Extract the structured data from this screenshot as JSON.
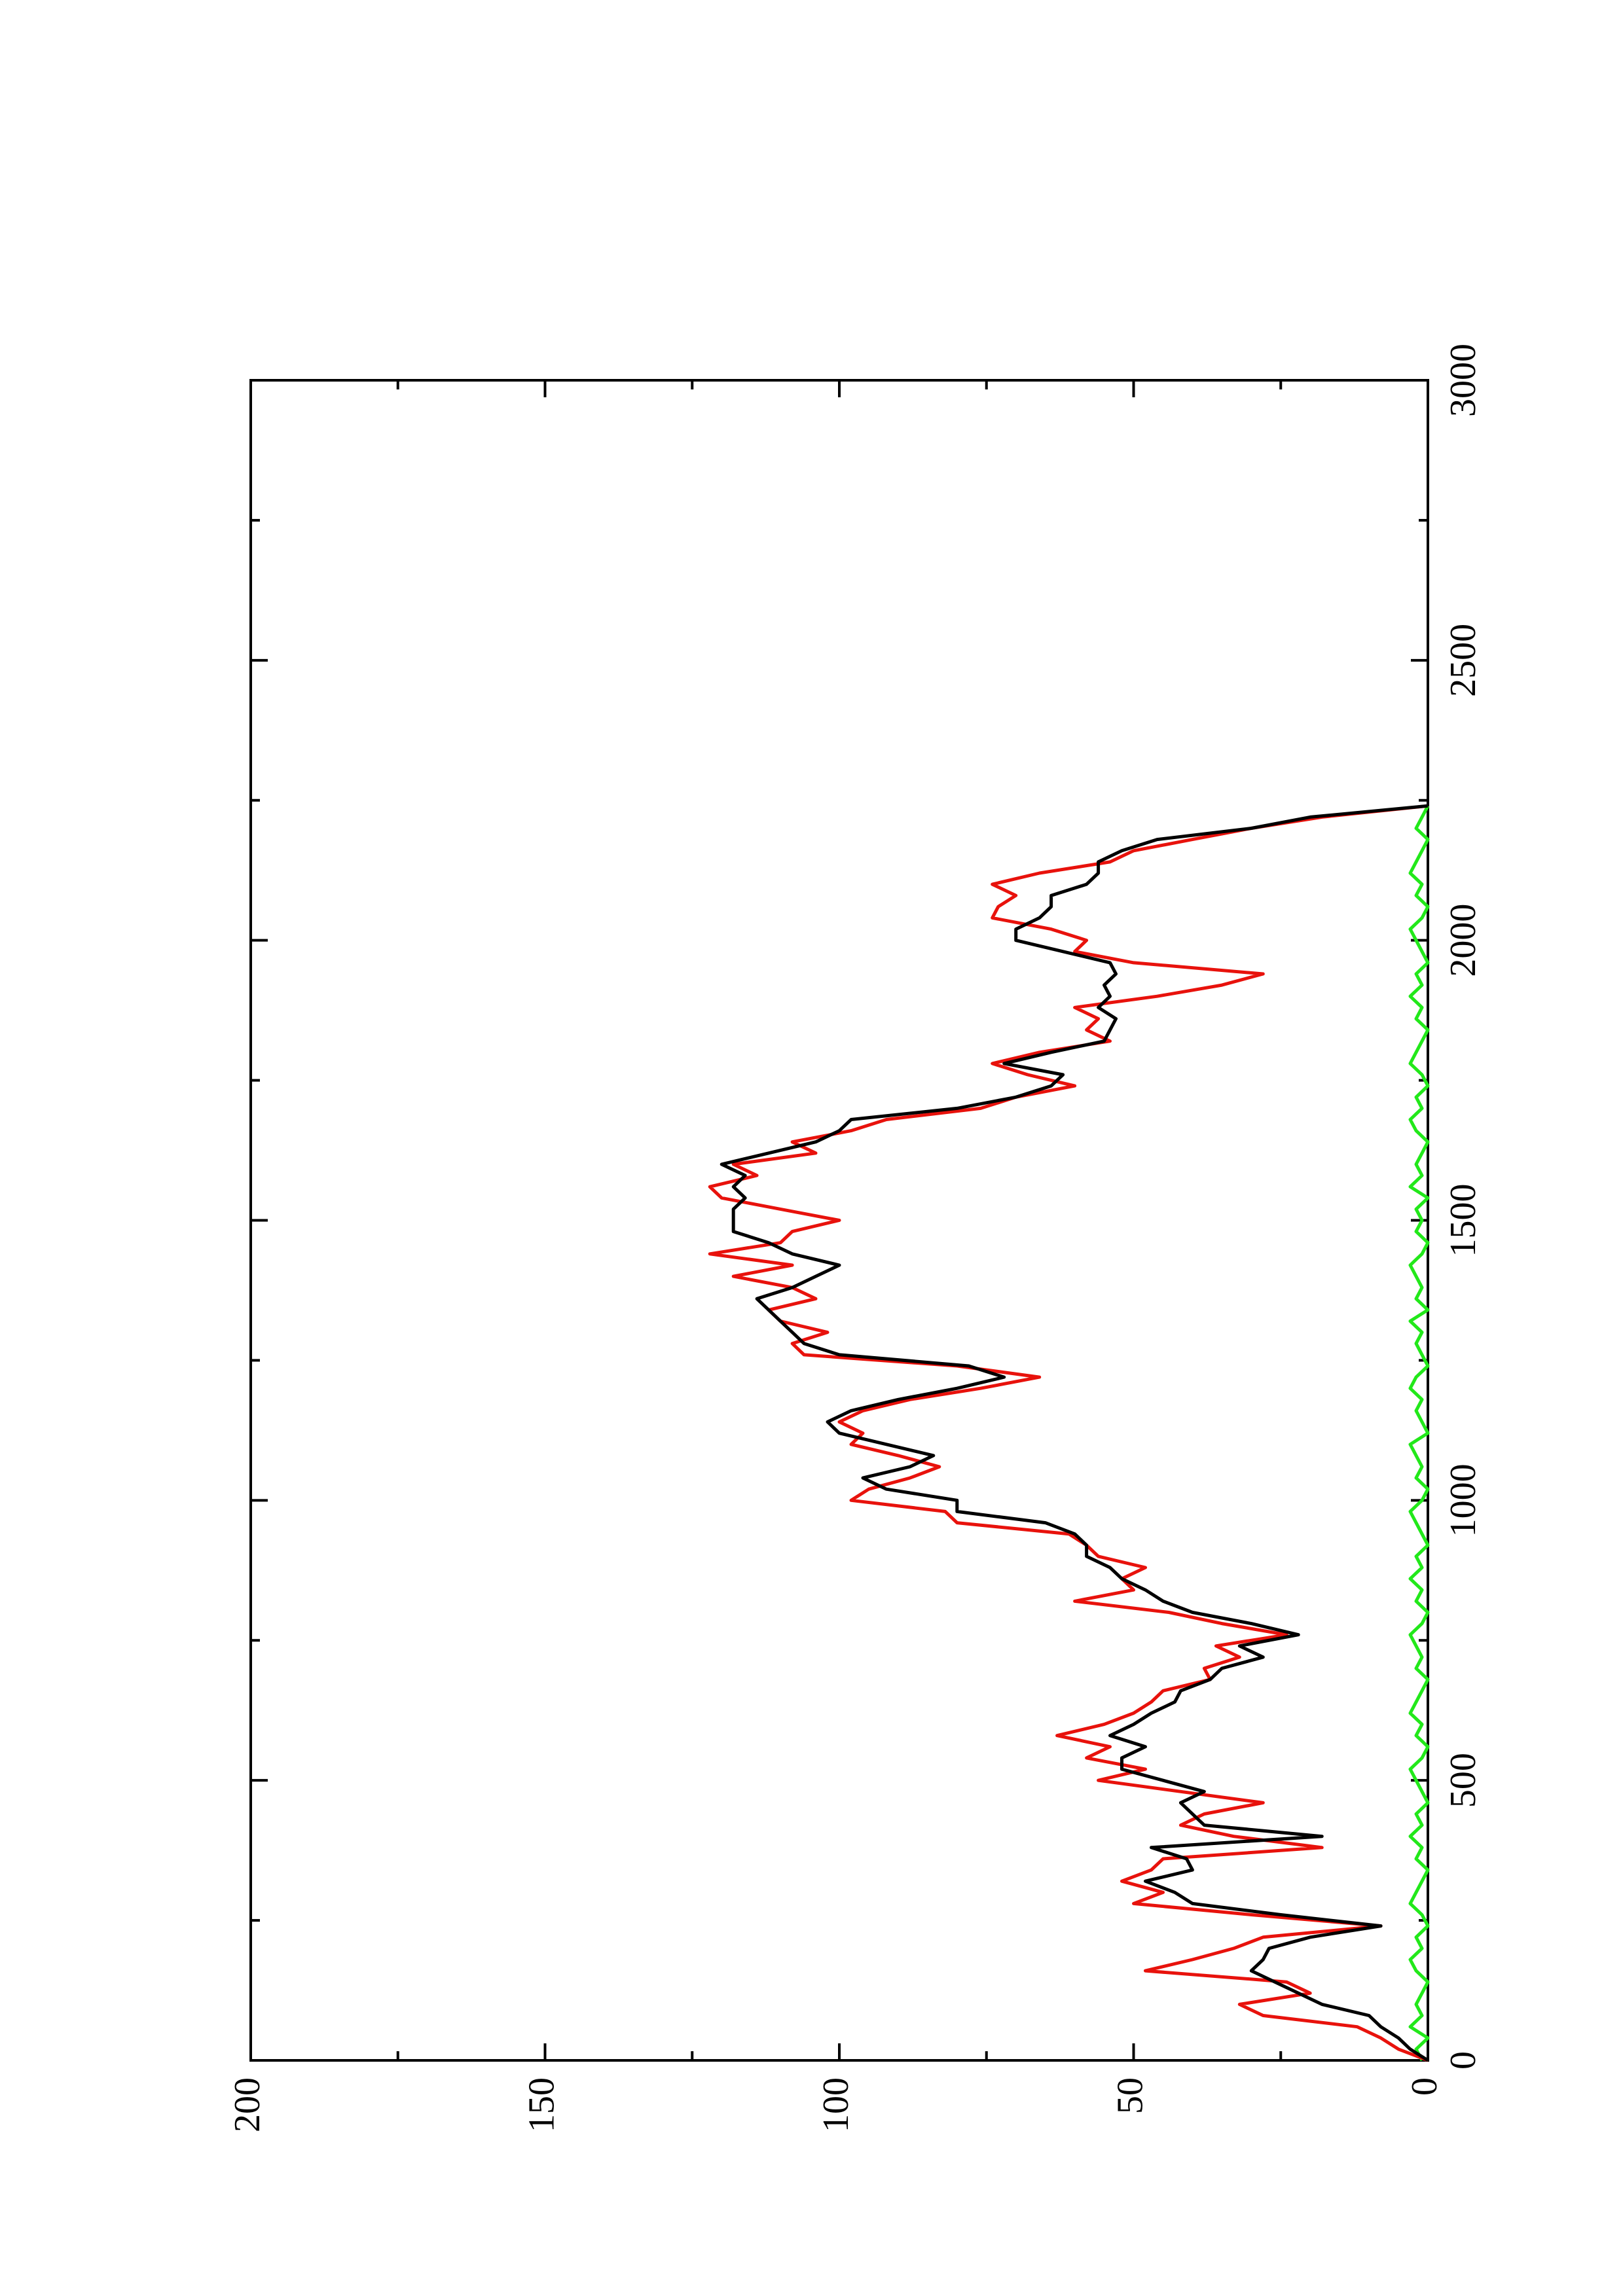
{
  "chart_data": {
    "type": "line",
    "x": [
      0,
      20,
      40,
      60,
      80,
      100,
      120,
      140,
      160,
      180,
      200,
      220,
      240,
      260,
      280,
      300,
      320,
      340,
      360,
      380,
      400,
      420,
      440,
      460,
      480,
      500,
      520,
      540,
      560,
      580,
      600,
      620,
      640,
      660,
      680,
      700,
      720,
      740,
      760,
      780,
      800,
      820,
      840,
      860,
      880,
      900,
      920,
      940,
      960,
      980,
      1000,
      1020,
      1040,
      1060,
      1080,
      1100,
      1120,
      1140,
      1160,
      1180,
      1200,
      1220,
      1240,
      1260,
      1280,
      1300,
      1320,
      1340,
      1360,
      1380,
      1400,
      1420,
      1440,
      1460,
      1480,
      1500,
      1520,
      1540,
      1560,
      1580,
      1600,
      1620,
      1640,
      1660,
      1680,
      1700,
      1720,
      1740,
      1760,
      1780,
      1800,
      1820,
      1840,
      1860,
      1880,
      1900,
      1920,
      1940,
      1960,
      1980,
      2000,
      2020,
      2040,
      2060,
      2080,
      2100,
      2120,
      2140,
      2160,
      2180,
      2200,
      2220,
      2240
    ],
    "series": [
      {
        "color": "#000000",
        "values": [
          0,
          3,
          5,
          8,
          10,
          18,
          22,
          26,
          30,
          28,
          27,
          20,
          8,
          25,
          40,
          43,
          48,
          40,
          41,
          47,
          18,
          38,
          40,
          42,
          38,
          45,
          52,
          52,
          48,
          54,
          50,
          47,
          43,
          42,
          37,
          35,
          28,
          32,
          22,
          30,
          40,
          45,
          48,
          52,
          54,
          58,
          58,
          60,
          65,
          80,
          80,
          92,
          96,
          88,
          84,
          92,
          100,
          102,
          98,
          90,
          80,
          72,
          78,
          100,
          106,
          108,
          110,
          112,
          114,
          108,
          104,
          100,
          108,
          112,
          118,
          118,
          118,
          116,
          118,
          116,
          120,
          112,
          104,
          100,
          98,
          80,
          70,
          64,
          62,
          72,
          64,
          55,
          54,
          53,
          56,
          54,
          55,
          53,
          54,
          62,
          70,
          70,
          66,
          64,
          64,
          58,
          56,
          56,
          52,
          46,
          30,
          20,
          0
        ]
      },
      {
        "color": "#e8120c",
        "values": [
          0,
          5,
          8,
          12,
          28,
          32,
          20,
          24,
          48,
          40,
          33,
          28,
          8,
          30,
          50,
          45,
          52,
          47,
          45,
          18,
          33,
          42,
          38,
          28,
          42,
          56,
          48,
          58,
          54,
          63,
          55,
          50,
          47,
          45,
          37,
          38,
          32,
          36,
          24,
          35,
          44,
          60,
          50,
          52,
          48,
          56,
          58,
          61,
          80,
          82,
          98,
          95,
          88,
          83,
          90,
          98,
          96,
          100,
          96,
          88,
          76,
          66,
          80,
          106,
          108,
          102,
          110,
          112,
          104,
          108,
          118,
          108,
          122,
          110,
          108,
          100,
          110,
          120,
          122,
          114,
          118,
          104,
          108,
          98,
          92,
          76,
          70,
          60,
          68,
          74,
          66,
          54,
          58,
          56,
          60,
          46,
          35,
          28,
          50,
          60,
          58,
          64,
          74,
          73,
          70,
          74,
          66,
          54,
          50,
          40,
          30,
          18,
          0
        ]
      },
      {
        "color": "#22e81a",
        "values": [
          1,
          2,
          0,
          3,
          1,
          2,
          1,
          0,
          2,
          3,
          1,
          2,
          0,
          1,
          3,
          2,
          1,
          0,
          2,
          1,
          3,
          1,
          2,
          0,
          1,
          2,
          3,
          1,
          0,
          2,
          1,
          3,
          2,
          1,
          0,
          2,
          1,
          2,
          3,
          1,
          0,
          2,
          1,
          3,
          1,
          2,
          0,
          1,
          2,
          3,
          1,
          0,
          2,
          1,
          2,
          3,
          0,
          1,
          2,
          1,
          3,
          2,
          0,
          1,
          2,
          1,
          3,
          0,
          2,
          1,
          2,
          3,
          1,
          0,
          2,
          1,
          2,
          0,
          3,
          1,
          2,
          1,
          0,
          2,
          3,
          1,
          2,
          0,
          1,
          3,
          2,
          1,
          0,
          2,
          1,
          3,
          1,
          2,
          0,
          1,
          2,
          3,
          1,
          0,
          2,
          1,
          3,
          2,
          1,
          0,
          2,
          1,
          0
        ]
      }
    ],
    "xlim": [
      0,
      3000
    ],
    "xticks": [
      0,
      500,
      1000,
      1500,
      2000,
      2500,
      3000
    ],
    "ylim": [
      0,
      200
    ],
    "yticks": [
      0,
      50,
      100,
      150,
      200
    ]
  }
}
